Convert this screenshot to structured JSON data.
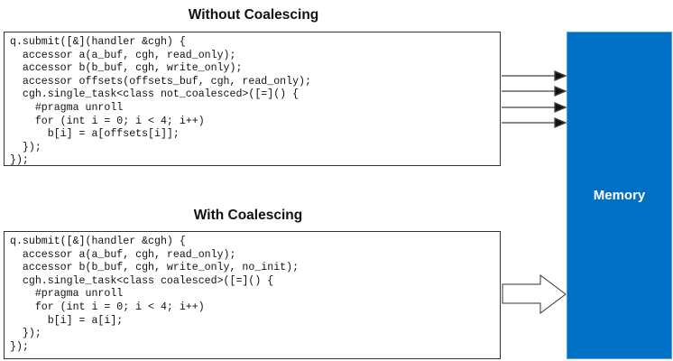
{
  "top": {
    "title": "Without Coalescing",
    "code": "q.submit([&](handler &cgh) {\n  accessor a(a_buf, cgh, read_only);\n  accessor b(b_buf, cgh, write_only);\n  accessor offsets(offsets_buf, cgh, read_only);\n  cgh.single_task<class not_coalesced>([=]() {\n    #pragma unroll\n    for (int i = 0; i < 4; i++)\n      b[i] = a[offsets[i]];\n  });\n});"
  },
  "bottom": {
    "title": "With Coalescing",
    "code": "q.submit([&](handler &cgh) {\n  accessor a(a_buf, cgh, read_only);\n  accessor b(b_buf, cgh, write_only, no_init);\n  cgh.single_task<class coalesced>([=]() {\n    #pragma unroll\n    for (int i = 0; i < 4; i++)\n      b[i] = a[i];\n  });\n});"
  },
  "memory": {
    "label": "Memory",
    "color": "#0070c4"
  }
}
